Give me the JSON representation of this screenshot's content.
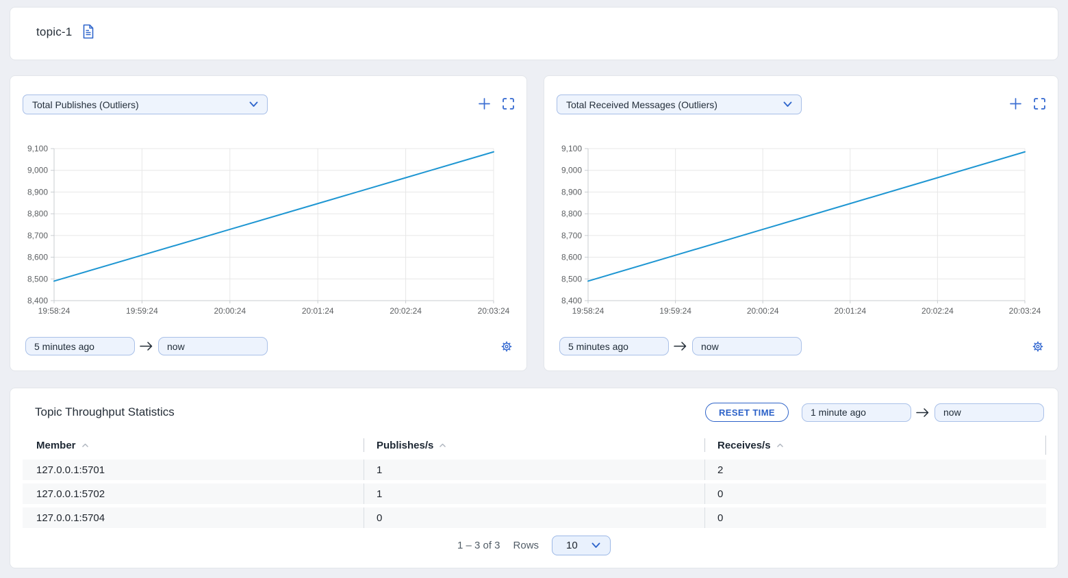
{
  "header": {
    "title": "topic-1"
  },
  "charts": [
    {
      "selector_label": "Total Publishes (Outliers)",
      "from_value": "5 minutes ago",
      "to_value": "now"
    },
    {
      "selector_label": "Total Received Messages (Outliers)",
      "from_value": "5 minutes ago",
      "to_value": "now"
    }
  ],
  "chart_data": [
    {
      "type": "line",
      "title": "Total Publishes (Outliers)",
      "x": [
        "19:58:24",
        "19:59:24",
        "20:00:24",
        "20:01:24",
        "20:02:24",
        "20:03:24"
      ],
      "series": [
        {
          "name": "Total Publishes",
          "values": [
            8490,
            8609,
            8728,
            8847,
            8966,
            9085
          ]
        }
      ],
      "ylim": [
        8400,
        9100
      ],
      "ytick_interval": 100,
      "grid": true,
      "legend": false,
      "line_color": "#1e96d2"
    },
    {
      "type": "line",
      "title": "Total Received Messages (Outliers)",
      "x": [
        "19:58:24",
        "19:59:24",
        "20:00:24",
        "20:01:24",
        "20:02:24",
        "20:03:24"
      ],
      "series": [
        {
          "name": "Total Received Messages",
          "values": [
            8490,
            8609,
            8728,
            8847,
            8966,
            9085
          ]
        }
      ],
      "ylim": [
        8400,
        9100
      ],
      "ytick_interval": 100,
      "grid": true,
      "legend": false,
      "line_color": "#1e96d2"
    }
  ],
  "stats": {
    "title": "Topic Throughput Statistics",
    "reset_button_label": "RESET TIME",
    "from_value": "1 minute ago",
    "to_value": "now",
    "table": {
      "columns": [
        "Member",
        "Publishes/s",
        "Receives/s"
      ],
      "rows": [
        [
          "127.0.0.1:5701",
          "1",
          "2"
        ],
        [
          "127.0.0.1:5702",
          "1",
          "0"
        ],
        [
          "127.0.0.1:5704",
          "0",
          "0"
        ]
      ]
    },
    "pagination": {
      "range_text": "1 – 3 of 3",
      "rows_label": "Rows",
      "rows_per_page": "10"
    }
  },
  "colors": {
    "accent_blue": "#3b6ed2",
    "line_blue": "#1e96d2",
    "background": "#edeff4",
    "row_bg": "#f7f8f9"
  }
}
